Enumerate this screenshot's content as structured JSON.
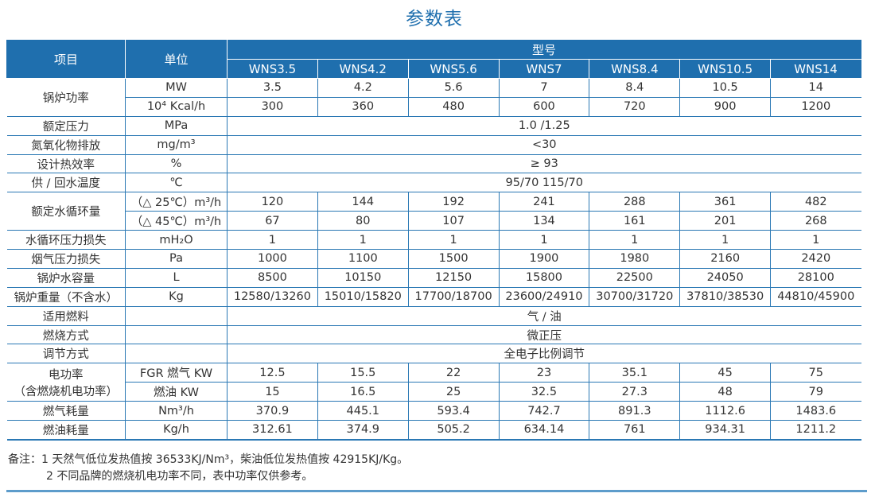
{
  "title": "参数表",
  "header": {
    "item": "项目",
    "unit": "单位",
    "model": "型号",
    "models": [
      "WNS3.5",
      "WNS4.2",
      "WNS5.6",
      "WNS7",
      "WNS8.4",
      "WNS10.5",
      "WNS14"
    ]
  },
  "rows": [
    {
      "label": "锅炉功率",
      "rowspan": 2,
      "unit": "MW",
      "values": [
        "3.5",
        "4.2",
        "5.6",
        "7",
        "8.4",
        "10.5",
        "14"
      ]
    },
    {
      "unit": "10⁴ Kcal/h",
      "values": [
        "300",
        "360",
        "480",
        "600",
        "720",
        "900",
        "1200"
      ]
    },
    {
      "label": "额定压力",
      "unit": "MPa",
      "span": "1.0 /1.25"
    },
    {
      "label": "氮氧化物排放",
      "unit": "mg/m³",
      "span": "<30"
    },
    {
      "label": "设计热效率",
      "unit": "%",
      "span": "≥ 93"
    },
    {
      "label": "供 / 回水温度",
      "unit": "℃",
      "span": "95/70   115/70"
    },
    {
      "label": "额定水循环量",
      "rowspan": 2,
      "unit": "（△ 25℃）m³/h",
      "values": [
        "120",
        "144",
        "192",
        "241",
        "288",
        "361",
        "482"
      ]
    },
    {
      "unit": "（△ 45℃）m³/h",
      "values": [
        "67",
        "80",
        "107",
        "134",
        "161",
        "201",
        "268"
      ]
    },
    {
      "label": "水循环压力损失",
      "unit": "mH₂O",
      "values": [
        "1",
        "1",
        "1",
        "1",
        "1",
        "1",
        "1"
      ]
    },
    {
      "label": "烟气压力损失",
      "unit": "Pa",
      "values": [
        "1000",
        "1100",
        "1500",
        "1900",
        "1980",
        "2160",
        "2420"
      ]
    },
    {
      "label": "锅炉水容量",
      "unit": "L",
      "values": [
        "8500",
        "10150",
        "12150",
        "15800",
        "22500",
        "24050",
        "28100"
      ]
    },
    {
      "label": "锅炉重量（不含水）",
      "unit": "Kg",
      "values": [
        "12580/13260",
        "15010/15820",
        "17700/18700",
        "23600/24910",
        "30700/31720",
        "37810/38530",
        "44810/45900"
      ]
    },
    {
      "label": "适用燃料",
      "unit": "",
      "span": "气 / 油"
    },
    {
      "label": "燃烧方式",
      "unit": "",
      "span": "微正压"
    },
    {
      "label": "调节方式",
      "unit": "",
      "span": "全电子比例调节"
    },
    {
      "label": "电功率",
      "label2": "（含燃烧机电功率）",
      "rowspan": 2,
      "unit": "FGR 燃气 KW",
      "values": [
        "12.5",
        "15.5",
        "22",
        "23",
        "35.1",
        "45",
        "75"
      ]
    },
    {
      "unit": "燃油 KW",
      "values": [
        "15",
        "16.5",
        "25",
        "32.5",
        "27.3",
        "48",
        "79"
      ]
    },
    {
      "label": "燃气耗量",
      "unit": "Nm³/h",
      "values": [
        "370.9",
        "445.1",
        "593.4",
        "742.7",
        "891.3",
        "1112.6",
        "1483.6"
      ]
    },
    {
      "label": "燃油耗量",
      "unit": "Kg/h",
      "values": [
        "312.61",
        "374.9",
        "505.2",
        "634.14",
        "761",
        "934.31",
        "1211.2"
      ]
    }
  ],
  "notes": [
    "备注：1  天然气低位发热值按 36533KJ/Nm³，柴油低位发热值按 42915KJ/Kg。",
    "2  不同品牌的燃烧机电功率不同，表中功率仅供参考。"
  ]
}
